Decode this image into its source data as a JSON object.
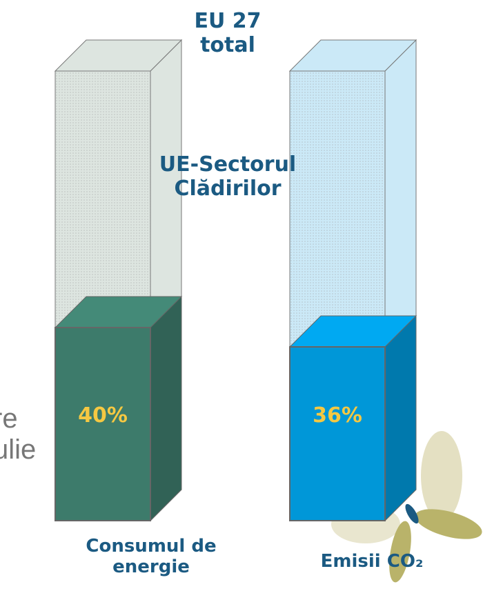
{
  "chart_data": {
    "type": "bar",
    "total_label": "EU 27 total",
    "sector_label": "UE-Sectorul Clădirilor",
    "categories": [
      "Consumul de energie",
      "Emisii CO₂"
    ],
    "values": [
      40,
      36
    ],
    "value_labels": [
      "40%",
      "36%"
    ],
    "colors": [
      "#3d7b6b",
      "#0097d8"
    ],
    "background_text": [
      "re",
      "ulie"
    ]
  }
}
